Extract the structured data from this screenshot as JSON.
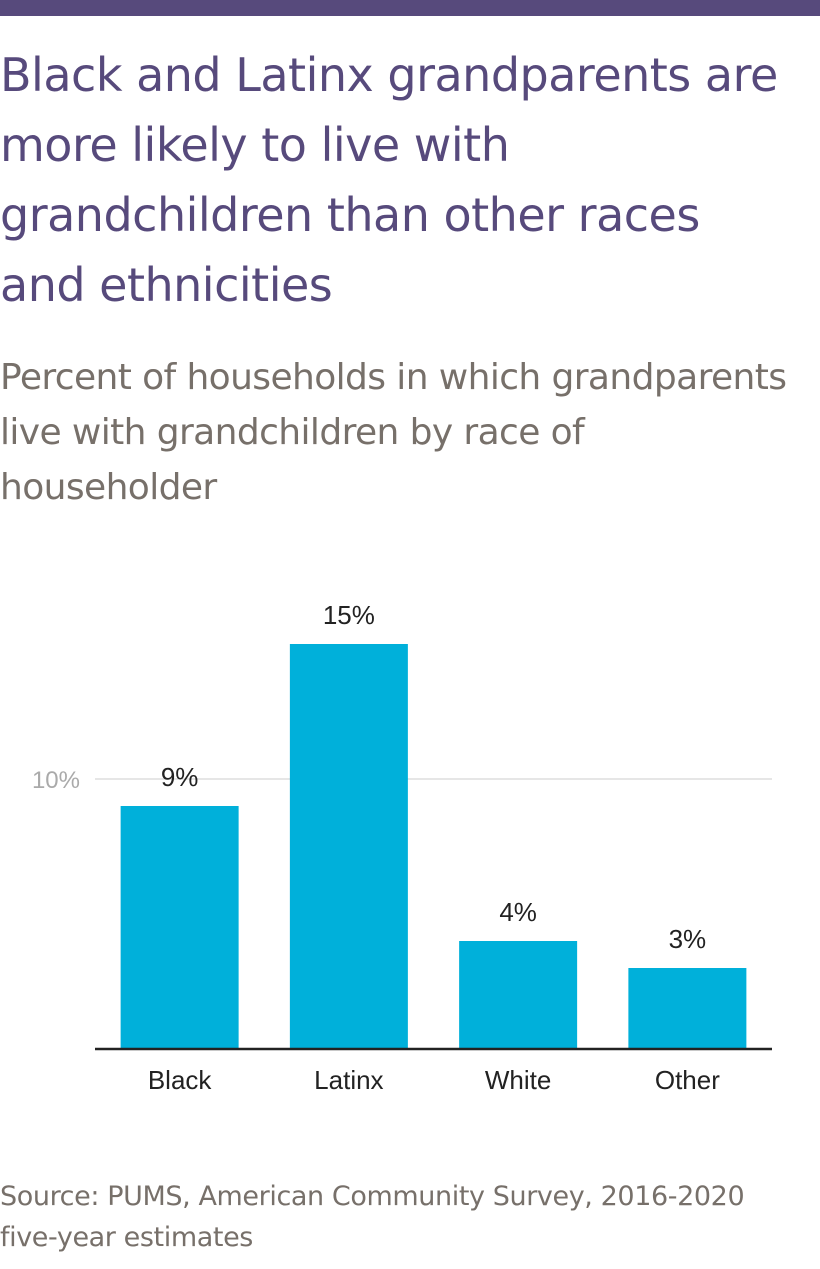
{
  "title": "Black and Latinx grandparents are more likely to live with grandchildren than other races and ethnicities",
  "subtitle": "Percent of households in which grandparents live with grandchildren by race of householder",
  "source": "Source: PUMS, American Community Survey, 2016-2020 five-year estimates",
  "colors": {
    "top_bar": "#574a7c",
    "title": "#574a7c",
    "subtitle": "#77706a",
    "bar": "#00b0da",
    "gridline": "#dddddd",
    "axis": "#222222",
    "tick_label": "#aaaaaa",
    "label": "#222222",
    "source": "#77706a"
  },
  "chart_data": {
    "type": "bar",
    "categories": [
      "Black",
      "Latinx",
      "White",
      "Other"
    ],
    "values": [
      9,
      15,
      4,
      3
    ],
    "data_labels": [
      "9%",
      "15%",
      "4%",
      "3%"
    ],
    "ylim": [
      0,
      16.5
    ],
    "yticks": [
      10
    ],
    "ytick_labels": [
      "10%"
    ],
    "grid": true,
    "xlabel": "",
    "ylabel": ""
  }
}
